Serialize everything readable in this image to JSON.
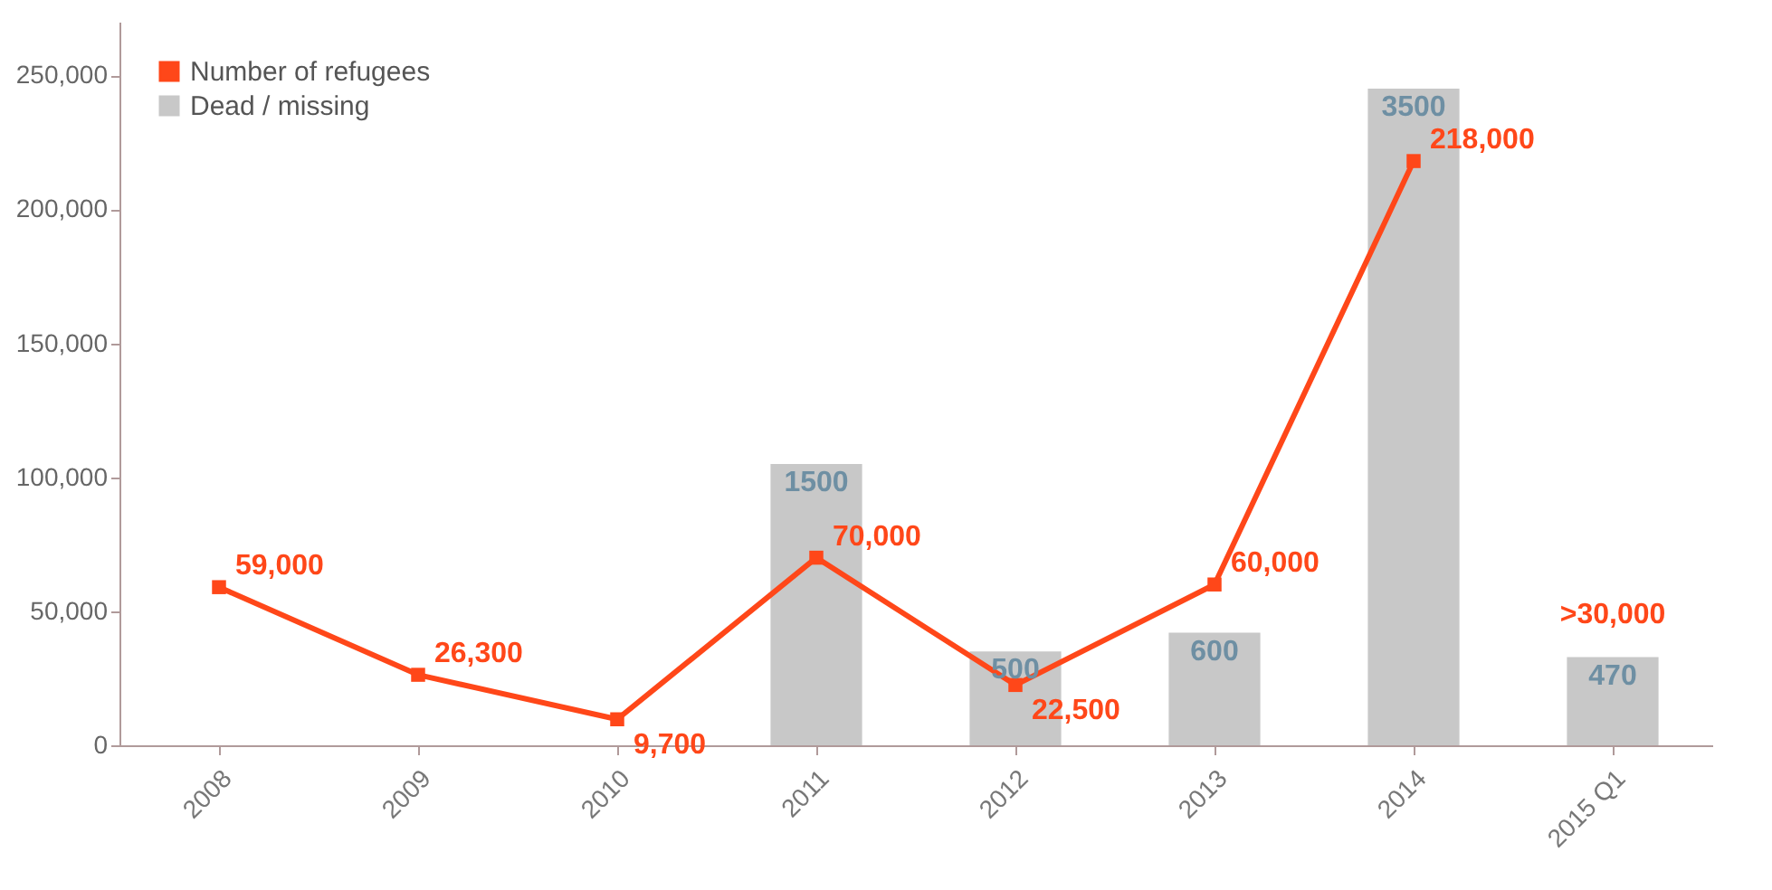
{
  "chart_data": {
    "type": "line",
    "categories": [
      "2008",
      "2009",
      "2010",
      "2011",
      "2012",
      "2013",
      "2014",
      "2015 Q1"
    ],
    "series": [
      {
        "name": "Dead / missing",
        "type": "bar",
        "axis": "y2",
        "color": "#c8c8c8",
        "values": [
          null,
          null,
          null,
          1500,
          500,
          600,
          3500,
          470
        ],
        "value_labels": [
          null,
          null,
          null,
          "1500",
          "500",
          "600",
          "3500",
          "470"
        ]
      },
      {
        "name": "Number of refugees",
        "color": "#ff4719",
        "values": [
          59000,
          26300,
          9700,
          70000,
          22500,
          60000,
          218000,
          null
        ],
        "value_labels": [
          "59,000",
          "26,300",
          "9,700",
          "70,000",
          "22,500",
          "60,000",
          "218,000",
          null
        ]
      }
    ],
    "ylim": [
      0,
      270000
    ],
    "yticks": [
      0,
      {
        "value": 50000,
        "label": "50,000"
      },
      {
        "value": 100000,
        "label": "100,000"
      },
      {
        "value": 150000,
        "label": "150,000"
      },
      {
        "value": 200000,
        "label": "200,000"
      },
      {
        "value": 250000,
        "label": "250,000"
      }
    ],
    "y2lim": [
      0,
      3857
    ],
    "annotations": [
      {
        "text": ">30,000",
        "x": "2015 Q1",
        "y": 30000
      }
    ],
    "legend": "top left",
    "marker": "square",
    "grid": false
  }
}
